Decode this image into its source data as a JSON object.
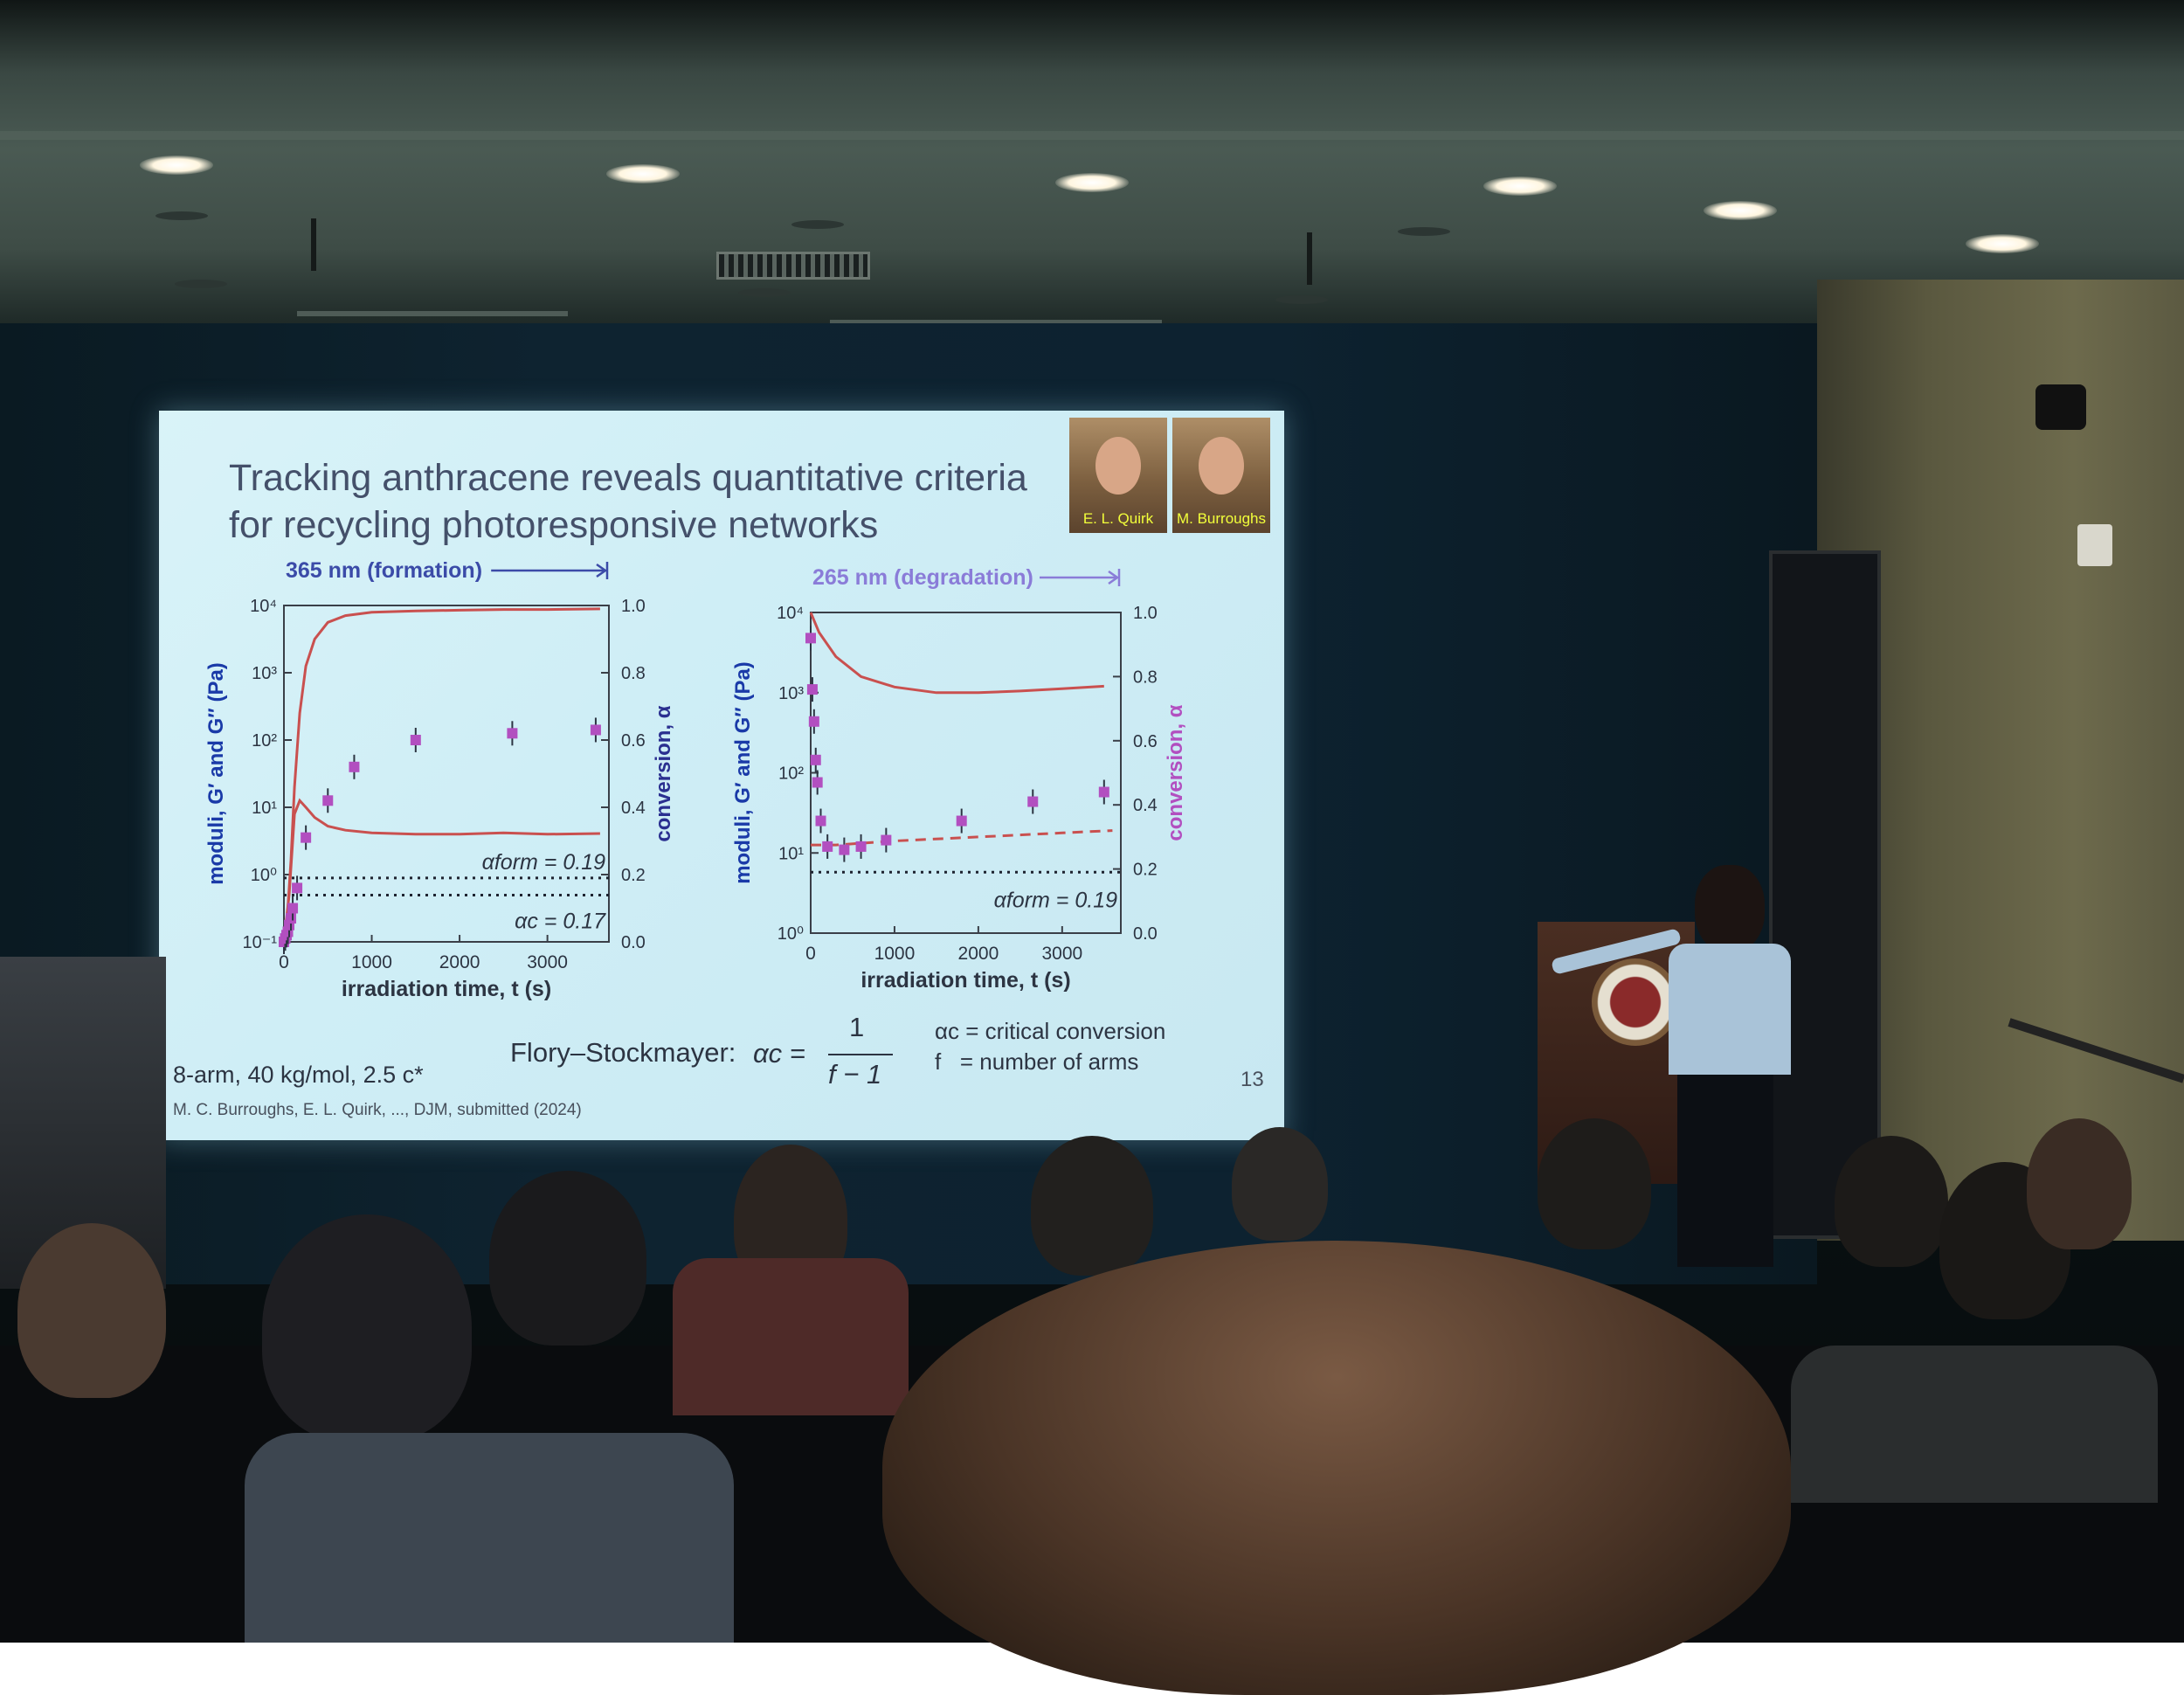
{
  "slide": {
    "title_line1": "Tracking anthracene reveals quantitative criteria",
    "title_line2": "for recycling photoresponsive networks",
    "photo_left_label": "E. L. Quirk",
    "photo_right_label": "M. Burroughs",
    "sample_info": "8-arm, 40 kg/mol, 2.5 c*",
    "citation": "M. C. Burroughs, E. L. Quirk, ..., DJM, submitted (2024)",
    "page_number": "13",
    "flory_label": "Flory–Stockmayer:",
    "flory_lhs": "αc =",
    "flory_num": "1",
    "flory_den": "f − 1",
    "legend_ac": "αc = critical conversion",
    "legend_f": "f   = number of arms"
  },
  "chart_data": [
    {
      "type": "line",
      "header": "365 nm (formation)",
      "xlabel": "irradiation time, t (s)",
      "ylabel": "moduli, G′ and G″ (Pa)",
      "y2label": "conversion, α",
      "xlim": [
        0,
        3700
      ],
      "xticks": [
        "0",
        "1000",
        "2000",
        "3000"
      ],
      "ylim_log": [
        -1,
        4
      ],
      "yticks": [
        "10⁻¹",
        "10⁰",
        "10¹",
        "10²",
        "10³",
        "10⁴"
      ],
      "y2lim": [
        0,
        1
      ],
      "y2ticks": [
        "0.0",
        "0.2",
        "0.4",
        "0.6",
        "0.8",
        "1.0"
      ],
      "annotations": [
        "αform = 0.19",
        "αc = 0.17"
      ],
      "thresholds": {
        "alpha_form": 0.19,
        "alpha_c": 0.17
      },
      "series": [
        {
          "kind": "storage-modulus-curve",
          "x": [
            0,
            40,
            80,
            120,
            180,
            250,
            350,
            500,
            700,
            1000,
            1500,
            2000,
            2500,
            3000,
            3600
          ],
          "y_log": [
            -1.0,
            -0.6,
            0.2,
            1.3,
            2.4,
            3.1,
            3.5,
            3.75,
            3.85,
            3.9,
            3.92,
            3.93,
            3.94,
            3.94,
            3.95
          ]
        },
        {
          "kind": "loss-modulus-curve",
          "x": [
            0,
            60,
            120,
            180,
            250,
            350,
            500,
            700,
            1000,
            1500,
            2000,
            2500,
            3000,
            3600
          ],
          "y_log": [
            -1.0,
            -0.3,
            0.9,
            1.1,
            1.0,
            0.85,
            0.72,
            0.66,
            0.62,
            0.6,
            0.6,
            0.62,
            0.6,
            0.61
          ]
        },
        {
          "kind": "conversion-points",
          "x": [
            0,
            15,
            30,
            45,
            60,
            80,
            100,
            150,
            250,
            500,
            800,
            1500,
            2600,
            3550
          ],
          "y": [
            0.0,
            0.01,
            0.02,
            0.03,
            0.05,
            0.07,
            0.1,
            0.16,
            0.31,
            0.42,
            0.52,
            0.6,
            0.62,
            0.63
          ]
        }
      ]
    },
    {
      "type": "line",
      "header": "265 nm (degradation)",
      "xlabel": "irradiation time, t (s)",
      "ylabel": "moduli, G′ and G″ (Pa)",
      "y2label": "conversion, α",
      "xlim": [
        0,
        3700
      ],
      "xticks": [
        "0",
        "1000",
        "2000",
        "3000"
      ],
      "ylim_log": [
        0,
        4
      ],
      "yticks": [
        "10⁰",
        "10¹",
        "10²",
        "10³",
        "10⁴"
      ],
      "y2lim": [
        0,
        1
      ],
      "y2ticks": [
        "0.0",
        "0.2",
        "0.4",
        "0.6",
        "0.8",
        "1.0"
      ],
      "annotations": [
        "αform = 0.19"
      ],
      "thresholds": {
        "alpha_form": 0.19
      },
      "series": [
        {
          "kind": "storage-modulus-curve",
          "x": [
            0,
            100,
            300,
            600,
            1000,
            1500,
            2000,
            2500,
            3000,
            3500
          ],
          "y_log": [
            4.0,
            3.75,
            3.45,
            3.2,
            3.07,
            3.0,
            3.0,
            3.02,
            3.05,
            3.08
          ]
        },
        {
          "kind": "loss-modulus-dashed",
          "x": [
            0,
            300,
            1000,
            2000,
            3000,
            3600
          ],
          "y_log": [
            1.1,
            1.1,
            1.15,
            1.2,
            1.25,
            1.28
          ]
        },
        {
          "kind": "conversion-points",
          "x": [
            0,
            20,
            40,
            60,
            80,
            120,
            200,
            400,
            600,
            900,
            1800,
            2650,
            3500
          ],
          "y": [
            0.92,
            0.76,
            0.66,
            0.54,
            0.47,
            0.35,
            0.27,
            0.26,
            0.27,
            0.29,
            0.35,
            0.41,
            0.44
          ]
        }
      ]
    }
  ],
  "colors": {
    "modulus_curve": "#c9504f",
    "conversion_points": "#b24fc0",
    "axis_left_label": "#1a3aa8",
    "axis_right_label_formation": "#2a2f90",
    "axis_right_label_degradation": "#b24fc0",
    "header_formation": "#3b4ba8",
    "header_degradation": "#8a7cd8"
  }
}
